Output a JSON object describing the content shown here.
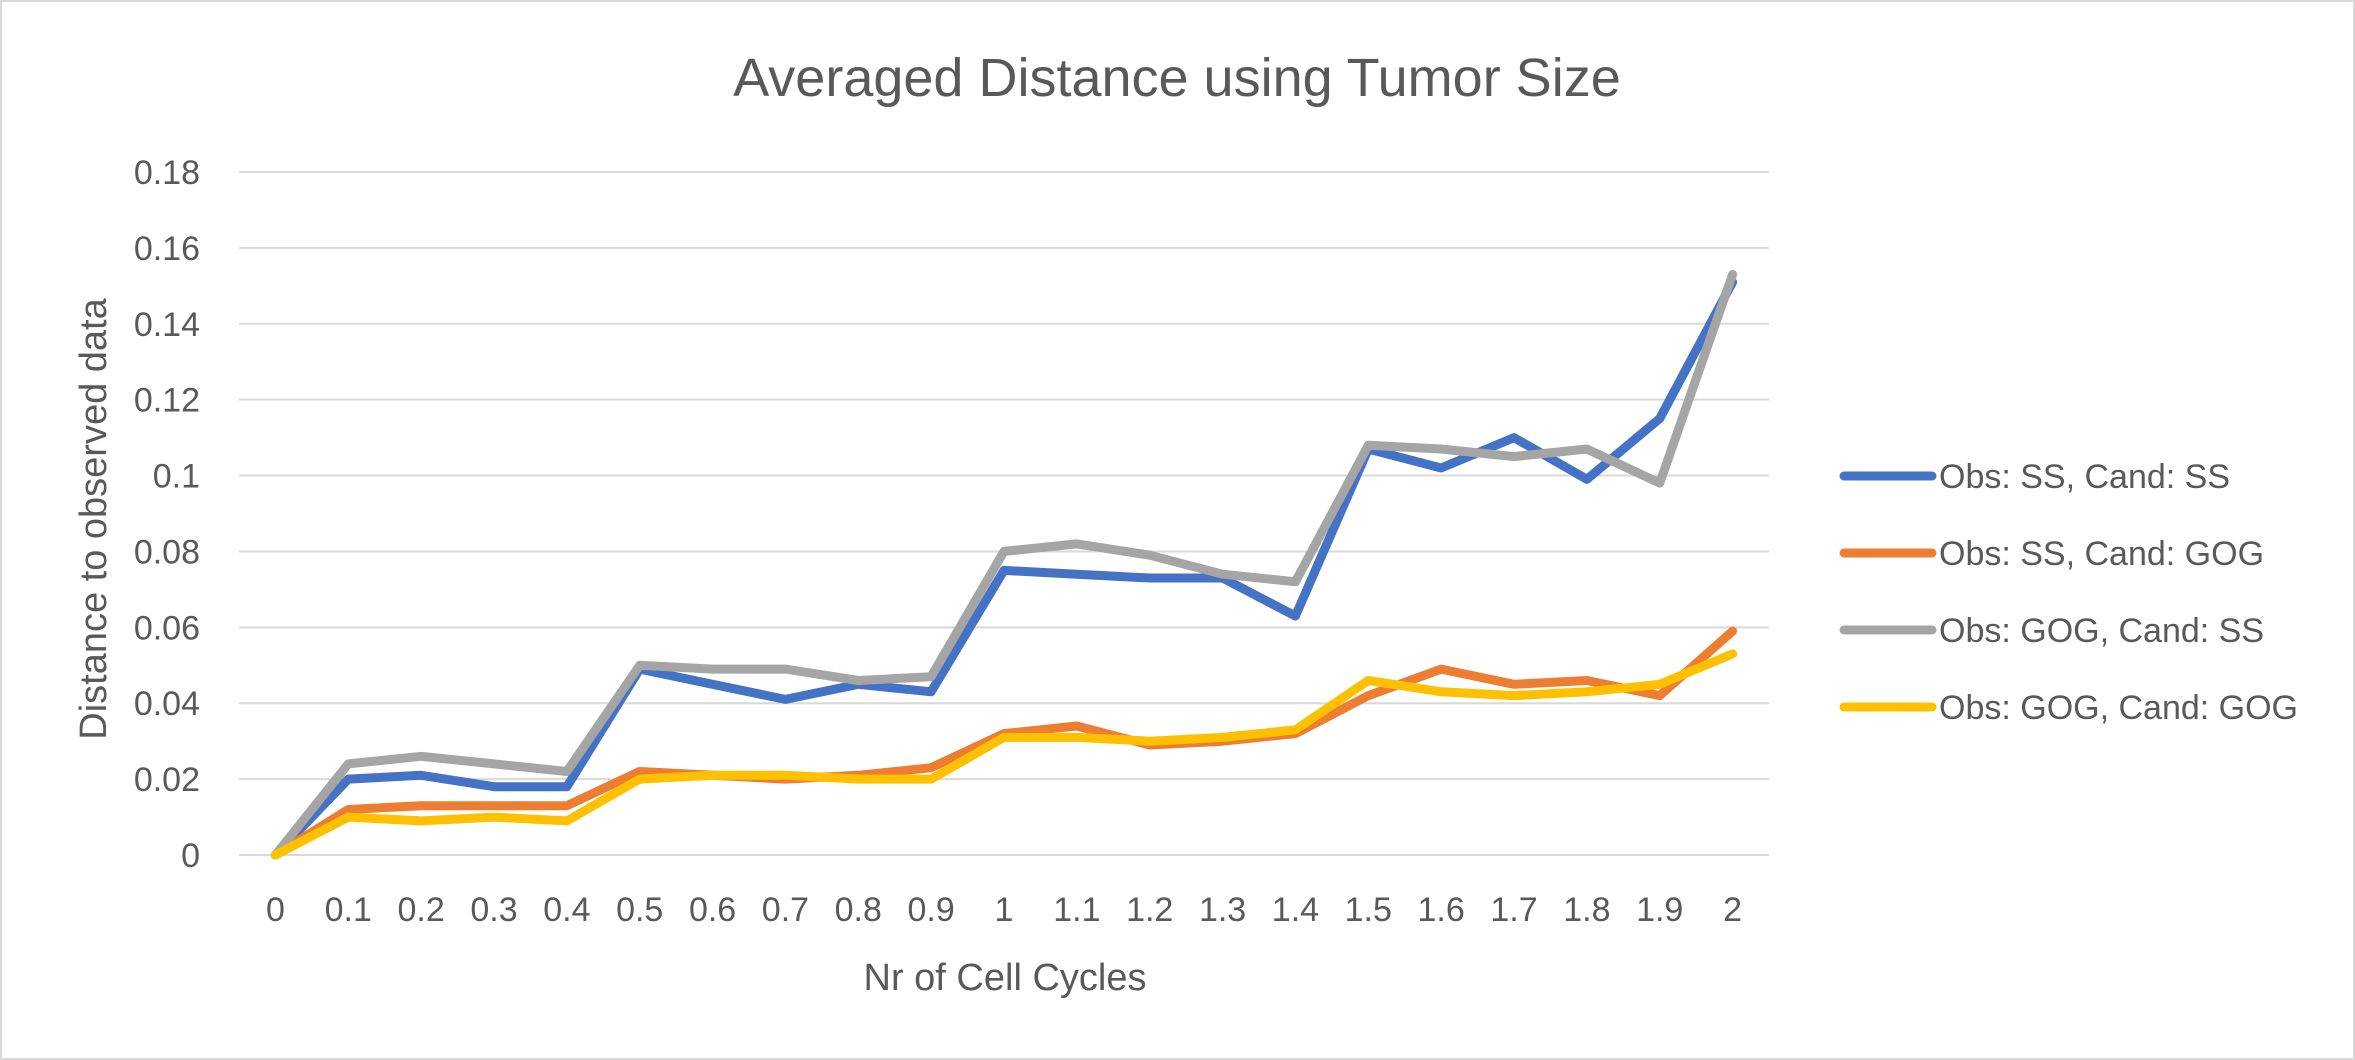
{
  "chart_data": {
    "type": "line",
    "title": "Averaged Distance using Tumor Size",
    "xlabel": "Nr of Cell Cycles",
    "ylabel": "Distance to observed data",
    "categories": [
      "0",
      "0.1",
      "0.2",
      "0.3",
      "0.4",
      "0.5",
      "0.6",
      "0.7",
      "0.8",
      "0.9",
      "1",
      "1.1",
      "1.2",
      "1.3",
      "1.4",
      "1.5",
      "1.6",
      "1.7",
      "1.8",
      "1.9",
      "2"
    ],
    "ylim": [
      0,
      0.18
    ],
    "yticks": [
      "0",
      "0.02",
      "0.04",
      "0.06",
      "0.08",
      "0.1",
      "0.12",
      "0.14",
      "0.16",
      "0.18"
    ],
    "grid": true,
    "legend_position": "right",
    "series": [
      {
        "name": "Obs: SS, Cand: SS",
        "color": "#4472C4",
        "values": [
          0,
          0.02,
          0.021,
          0.018,
          0.018,
          0.049,
          0.045,
          0.041,
          0.045,
          0.043,
          0.075,
          0.074,
          0.073,
          0.073,
          0.063,
          0.107,
          0.102,
          0.11,
          0.099,
          0.115,
          0.151
        ]
      },
      {
        "name": "Obs: SS, Cand: GOG",
        "color": "#ED7D31",
        "values": [
          0,
          0.012,
          0.013,
          0.013,
          0.013,
          0.022,
          0.021,
          0.02,
          0.021,
          0.023,
          0.032,
          0.034,
          0.029,
          0.03,
          0.032,
          0.042,
          0.049,
          0.045,
          0.046,
          0.042,
          0.059
        ]
      },
      {
        "name": "Obs: GOG, Cand: SS",
        "color": "#A5A5A5",
        "values": [
          0,
          0.024,
          0.026,
          0.024,
          0.022,
          0.05,
          0.049,
          0.049,
          0.046,
          0.047,
          0.08,
          0.082,
          0.079,
          0.074,
          0.072,
          0.108,
          0.107,
          0.105,
          0.107,
          0.098,
          0.153
        ]
      },
      {
        "name": "Obs: GOG, Cand: GOG",
        "color": "#FFC000",
        "values": [
          0,
          0.01,
          0.009,
          0.01,
          0.009,
          0.02,
          0.021,
          0.021,
          0.02,
          0.02,
          0.031,
          0.031,
          0.03,
          0.031,
          0.033,
          0.046,
          0.043,
          0.042,
          0.043,
          0.045,
          0.053
        ]
      }
    ]
  }
}
